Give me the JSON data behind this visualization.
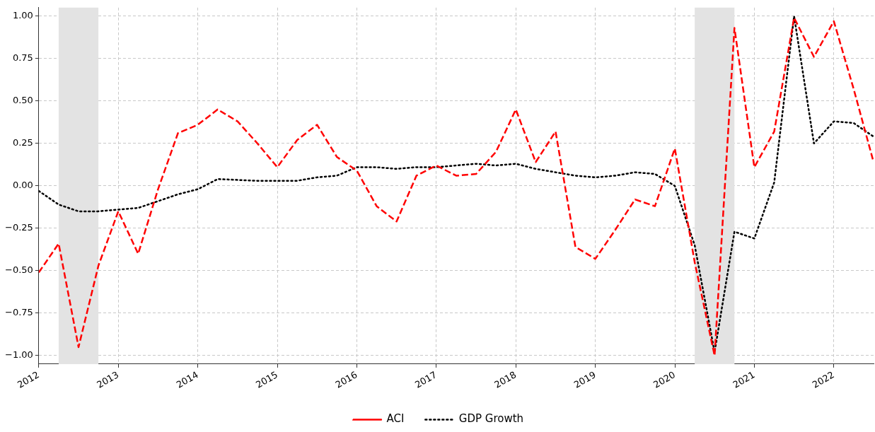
{
  "chart_data": {
    "type": "line",
    "x": [
      "2012-01",
      "2012-04",
      "2012-07",
      "2012-10",
      "2013-01",
      "2013-04",
      "2013-07",
      "2013-10",
      "2014-01",
      "2014-04",
      "2014-07",
      "2014-10",
      "2015-01",
      "2015-04",
      "2015-07",
      "2015-10",
      "2016-01",
      "2016-04",
      "2016-07",
      "2016-10",
      "2017-01",
      "2017-04",
      "2017-07",
      "2017-10",
      "2018-01",
      "2018-04",
      "2018-07",
      "2018-10",
      "2019-01",
      "2019-04",
      "2019-07",
      "2019-10",
      "2020-01",
      "2020-04",
      "2020-07",
      "2020-10",
      "2021-01",
      "2021-04",
      "2021-07",
      "2021-10",
      "2022-01",
      "2022-04",
      "2022-07"
    ],
    "series": [
      {
        "name": "ACI",
        "color": "#ff0000",
        "line_style": "dashed",
        "values": [
          -0.51,
          -0.34,
          -0.95,
          -0.47,
          -0.15,
          -0.4,
          -0.02,
          0.31,
          0.36,
          0.45,
          0.38,
          0.25,
          0.11,
          0.27,
          0.36,
          0.17,
          0.09,
          -0.12,
          -0.21,
          0.06,
          0.12,
          0.06,
          0.07,
          0.2,
          0.45,
          0.14,
          0.32,
          -0.36,
          -0.43,
          -0.26,
          -0.08,
          -0.12,
          0.22,
          -0.45,
          -1.0,
          0.93,
          0.11,
          0.32,
          0.99,
          0.76,
          0.97,
          0.57,
          0.14
        ]
      },
      {
        "name": "GDP Growth",
        "color": "#000000",
        "line_style": "dotted",
        "values": [
          -0.03,
          -0.11,
          -0.15,
          -0.15,
          -0.14,
          -0.13,
          -0.09,
          -0.05,
          -0.02,
          0.04,
          0.035,
          0.03,
          0.03,
          0.03,
          0.05,
          0.06,
          0.11,
          0.11,
          0.1,
          0.11,
          0.11,
          0.12,
          0.13,
          0.12,
          0.13,
          0.1,
          0.08,
          0.06,
          0.05,
          0.06,
          0.08,
          0.07,
          0.0,
          -0.35,
          -0.98,
          -0.27,
          -0.31,
          0.02,
          1.0,
          0.25,
          0.38,
          0.37,
          0.29
        ]
      }
    ],
    "xlim": [
      "2012-01",
      "2022-07"
    ],
    "xticks": [
      "2012",
      "2013",
      "2014",
      "2015",
      "2016",
      "2017",
      "2018",
      "2019",
      "2020",
      "2021",
      "2022"
    ],
    "ylim": [
      -1.05,
      1.05
    ],
    "yticks": [
      {
        "value": -1,
        "label": "−1.00"
      },
      {
        "value": -0.75,
        "label": "−0.75"
      },
      {
        "value": -0.5,
        "label": "−0.50"
      },
      {
        "value": -0.25,
        "label": "−0.25"
      },
      {
        "value": 0,
        "label": "0.00"
      },
      {
        "value": 0.25,
        "label": "0.25"
      },
      {
        "value": 0.5,
        "label": "0.50"
      },
      {
        "value": 0.75,
        "label": "0.75"
      },
      {
        "value": 1,
        "label": "1.00"
      }
    ],
    "bands": [
      {
        "axis": "x",
        "from": "2012-04",
        "to": "2012-10",
        "color": "#e3e3e3"
      },
      {
        "axis": "x",
        "from": "2020-04",
        "to": "2020-10",
        "color": "#e3e3e3"
      }
    ],
    "grid": true,
    "legend": "bottom",
    "marker": "none"
  }
}
